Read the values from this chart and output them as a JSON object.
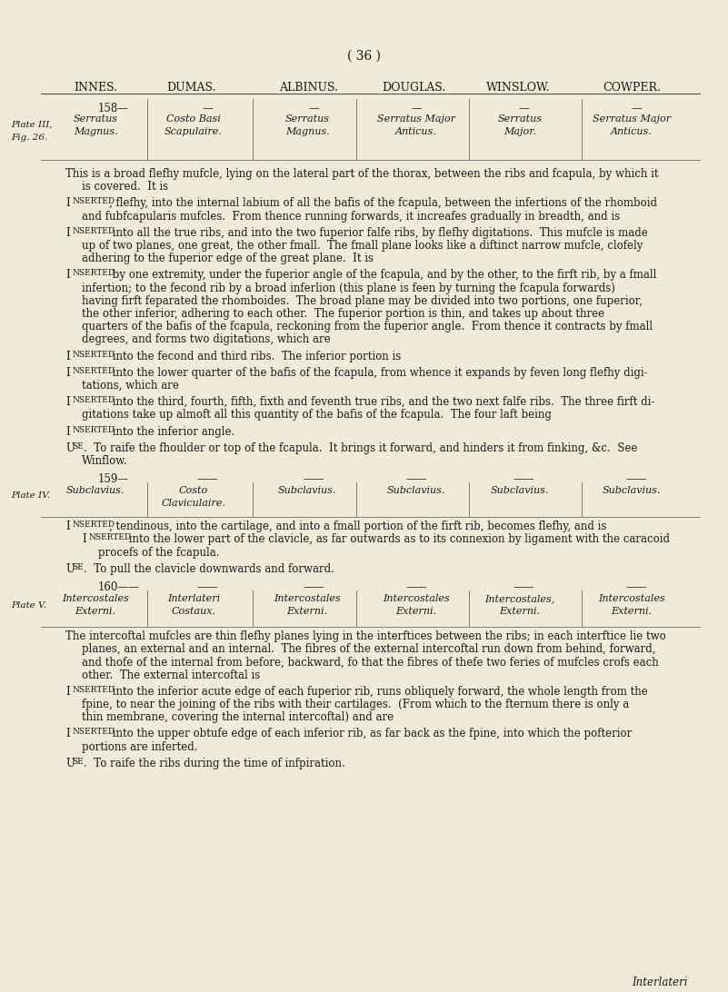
{
  "bg_color": "#f0ead8",
  "text_color": "#1a1a1a",
  "page_number": "( 36 )",
  "header_names": [
    "INNES.",
    "DUMAS.",
    "ALBINUS.",
    "DOUGLAS.",
    "WINSLOW.",
    "COWPER."
  ],
  "row158_cols": [
    "Serratus\nMagnus.",
    "Costo Basi\nScapulaire.",
    "Serratus\nMagnus.",
    "Serratus Major\nAnticus.",
    "Serratus\nMajor.",
    "Serratus Major\nAnticus."
  ],
  "row159_cols": [
    "Subclavius.",
    "Costo\nClaviculaire.",
    "Subclavius.",
    "Subclavius.",
    "Subclavius.",
    "Subclavius."
  ],
  "row160_cols": [
    "Intercostales\nExterni.",
    "Interlateri\nCostaux.",
    "Intercostales\nExterni.",
    "Intercostales\nExterni.",
    "Intercostales,\nExterni.",
    "Intercostales\nExterni."
  ]
}
